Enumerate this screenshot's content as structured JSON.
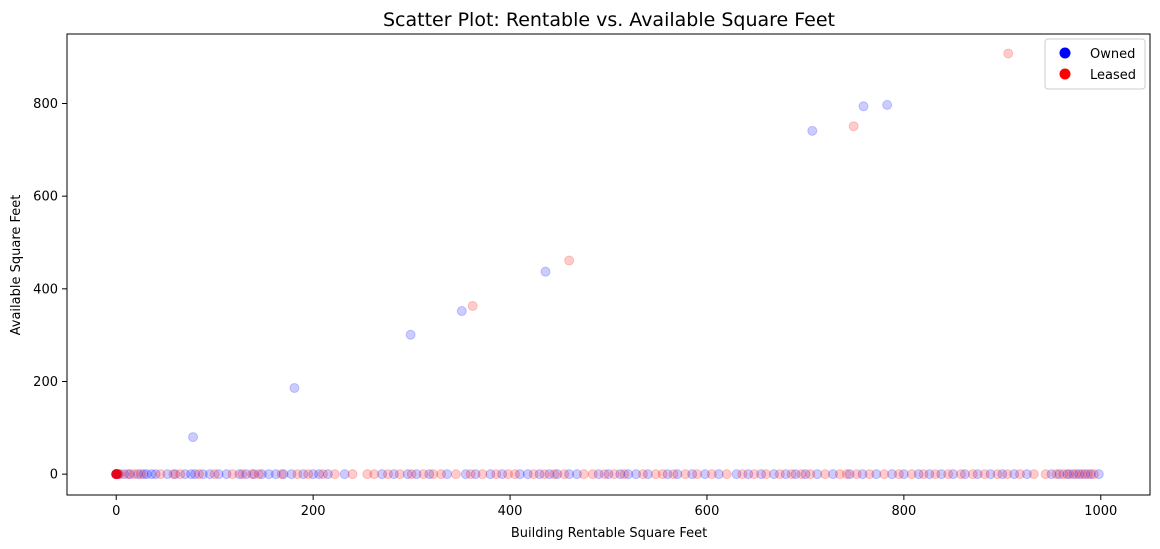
{
  "chart_data": {
    "type": "scatter",
    "title": "Scatter Plot: Rentable vs. Available Square Feet",
    "xlabel": "Building Rentable Square Feet",
    "ylabel": "Available Square Feet",
    "xlim": [
      -50,
      1050
    ],
    "ylim": [
      -45,
      950
    ],
    "xticks": [
      0,
      200,
      400,
      600,
      800,
      1000
    ],
    "yticks": [
      0,
      200,
      400,
      600,
      800
    ],
    "legend_position": "top-right",
    "series": [
      {
        "name": "Owned",
        "color": "#0000ff",
        "alpha": 0.2,
        "points": [
          [
            78,
            80
          ],
          [
            181,
            186
          ],
          [
            299,
            301
          ],
          [
            351,
            352
          ],
          [
            436,
            437
          ],
          [
            707,
            741
          ],
          [
            759,
            794
          ],
          [
            783,
            797
          ],
          [
            0,
            0
          ],
          [
            0,
            0
          ],
          [
            0,
            0
          ],
          [
            0,
            0
          ],
          [
            1,
            0
          ],
          [
            2,
            0
          ],
          [
            8,
            0
          ],
          [
            14,
            0
          ],
          [
            22,
            0
          ],
          [
            28,
            0
          ],
          [
            31,
            0
          ],
          [
            36,
            0
          ],
          [
            40,
            0
          ],
          [
            52,
            0
          ],
          [
            60,
            0
          ],
          [
            70,
            0
          ],
          [
            76,
            0
          ],
          [
            80,
            0
          ],
          [
            88,
            0
          ],
          [
            95,
            0
          ],
          [
            104,
            0
          ],
          [
            112,
            0
          ],
          [
            125,
            0
          ],
          [
            132,
            0
          ],
          [
            140,
            0
          ],
          [
            148,
            0
          ],
          [
            155,
            0
          ],
          [
            162,
            0
          ],
          [
            170,
            0
          ],
          [
            178,
            0
          ],
          [
            190,
            0
          ],
          [
            200,
            0
          ],
          [
            206,
            0
          ],
          [
            215,
            0
          ],
          [
            232,
            0
          ],
          [
            270,
            0
          ],
          [
            282,
            0
          ],
          [
            296,
            0
          ],
          [
            305,
            0
          ],
          [
            318,
            0
          ],
          [
            336,
            0
          ],
          [
            355,
            0
          ],
          [
            365,
            0
          ],
          [
            380,
            0
          ],
          [
            392,
            0
          ],
          [
            410,
            0
          ],
          [
            418,
            0
          ],
          [
            430,
            0
          ],
          [
            440,
            0
          ],
          [
            448,
            0
          ],
          [
            460,
            0
          ],
          [
            468,
            0
          ],
          [
            490,
            0
          ],
          [
            500,
            0
          ],
          [
            512,
            0
          ],
          [
            520,
            0
          ],
          [
            528,
            0
          ],
          [
            540,
            0
          ],
          [
            560,
            0
          ],
          [
            570,
            0
          ],
          [
            585,
            0
          ],
          [
            598,
            0
          ],
          [
            612,
            0
          ],
          [
            630,
            0
          ],
          [
            642,
            0
          ],
          [
            655,
            0
          ],
          [
            668,
            0
          ],
          [
            680,
            0
          ],
          [
            690,
            0
          ],
          [
            700,
            0
          ],
          [
            712,
            0
          ],
          [
            728,
            0
          ],
          [
            745,
            0
          ],
          [
            758,
            0
          ],
          [
            772,
            0
          ],
          [
            788,
            0
          ],
          [
            800,
            0
          ],
          [
            815,
            0
          ],
          [
            826,
            0
          ],
          [
            838,
            0
          ],
          [
            850,
            0
          ],
          [
            862,
            0
          ],
          [
            875,
            0
          ],
          [
            888,
            0
          ],
          [
            900,
            0
          ],
          [
            912,
            0
          ],
          [
            925,
            0
          ],
          [
            950,
            0
          ],
          [
            958,
            0
          ],
          [
            966,
            0
          ],
          [
            972,
            0
          ],
          [
            978,
            0
          ],
          [
            984,
            0
          ],
          [
            990,
            0
          ],
          [
            998,
            0
          ]
        ]
      },
      {
        "name": "Leased",
        "color": "#ff0000",
        "alpha": 0.2,
        "points": [
          [
            362,
            363
          ],
          [
            460,
            461
          ],
          [
            749,
            751
          ],
          [
            906,
            908
          ],
          [
            0,
            0
          ],
          [
            0,
            0
          ],
          [
            0,
            0
          ],
          [
            0,
            0
          ],
          [
            0,
            0
          ],
          [
            0,
            0
          ],
          [
            1,
            0
          ],
          [
            2,
            0
          ],
          [
            4,
            0
          ],
          [
            12,
            0
          ],
          [
            18,
            0
          ],
          [
            25,
            0
          ],
          [
            45,
            0
          ],
          [
            58,
            0
          ],
          [
            65,
            0
          ],
          [
            84,
            0
          ],
          [
            100,
            0
          ],
          [
            118,
            0
          ],
          [
            128,
            0
          ],
          [
            138,
            0
          ],
          [
            145,
            0
          ],
          [
            168,
            0
          ],
          [
            184,
            0
          ],
          [
            195,
            0
          ],
          [
            210,
            0
          ],
          [
            222,
            0
          ],
          [
            240,
            0
          ],
          [
            255,
            0
          ],
          [
            262,
            0
          ],
          [
            276,
            0
          ],
          [
            288,
            0
          ],
          [
            300,
            0
          ],
          [
            312,
            0
          ],
          [
            322,
            0
          ],
          [
            330,
            0
          ],
          [
            345,
            0
          ],
          [
            360,
            0
          ],
          [
            372,
            0
          ],
          [
            386,
            0
          ],
          [
            398,
            0
          ],
          [
            405,
            0
          ],
          [
            424,
            0
          ],
          [
            435,
            0
          ],
          [
            445,
            0
          ],
          [
            455,
            0
          ],
          [
            475,
            0
          ],
          [
            484,
            0
          ],
          [
            496,
            0
          ],
          [
            506,
            0
          ],
          [
            516,
            0
          ],
          [
            535,
            0
          ],
          [
            548,
            0
          ],
          [
            555,
            0
          ],
          [
            566,
            0
          ],
          [
            578,
            0
          ],
          [
            590,
            0
          ],
          [
            605,
            0
          ],
          [
            620,
            0
          ],
          [
            636,
            0
          ],
          [
            648,
            0
          ],
          [
            660,
            0
          ],
          [
            674,
            0
          ],
          [
            686,
            0
          ],
          [
            696,
            0
          ],
          [
            705,
            0
          ],
          [
            720,
            0
          ],
          [
            735,
            0
          ],
          [
            742,
            0
          ],
          [
            752,
            0
          ],
          [
            765,
            0
          ],
          [
            780,
            0
          ],
          [
            795,
            0
          ],
          [
            808,
            0
          ],
          [
            820,
            0
          ],
          [
            832,
            0
          ],
          [
            845,
            0
          ],
          [
            858,
            0
          ],
          [
            870,
            0
          ],
          [
            882,
            0
          ],
          [
            895,
            0
          ],
          [
            905,
            0
          ],
          [
            918,
            0
          ],
          [
            932,
            0
          ],
          [
            944,
            0
          ],
          [
            955,
            0
          ],
          [
            962,
            0
          ],
          [
            968,
            0
          ],
          [
            975,
            0
          ],
          [
            981,
            0
          ],
          [
            987,
            0
          ],
          [
            993,
            0
          ]
        ]
      }
    ]
  }
}
